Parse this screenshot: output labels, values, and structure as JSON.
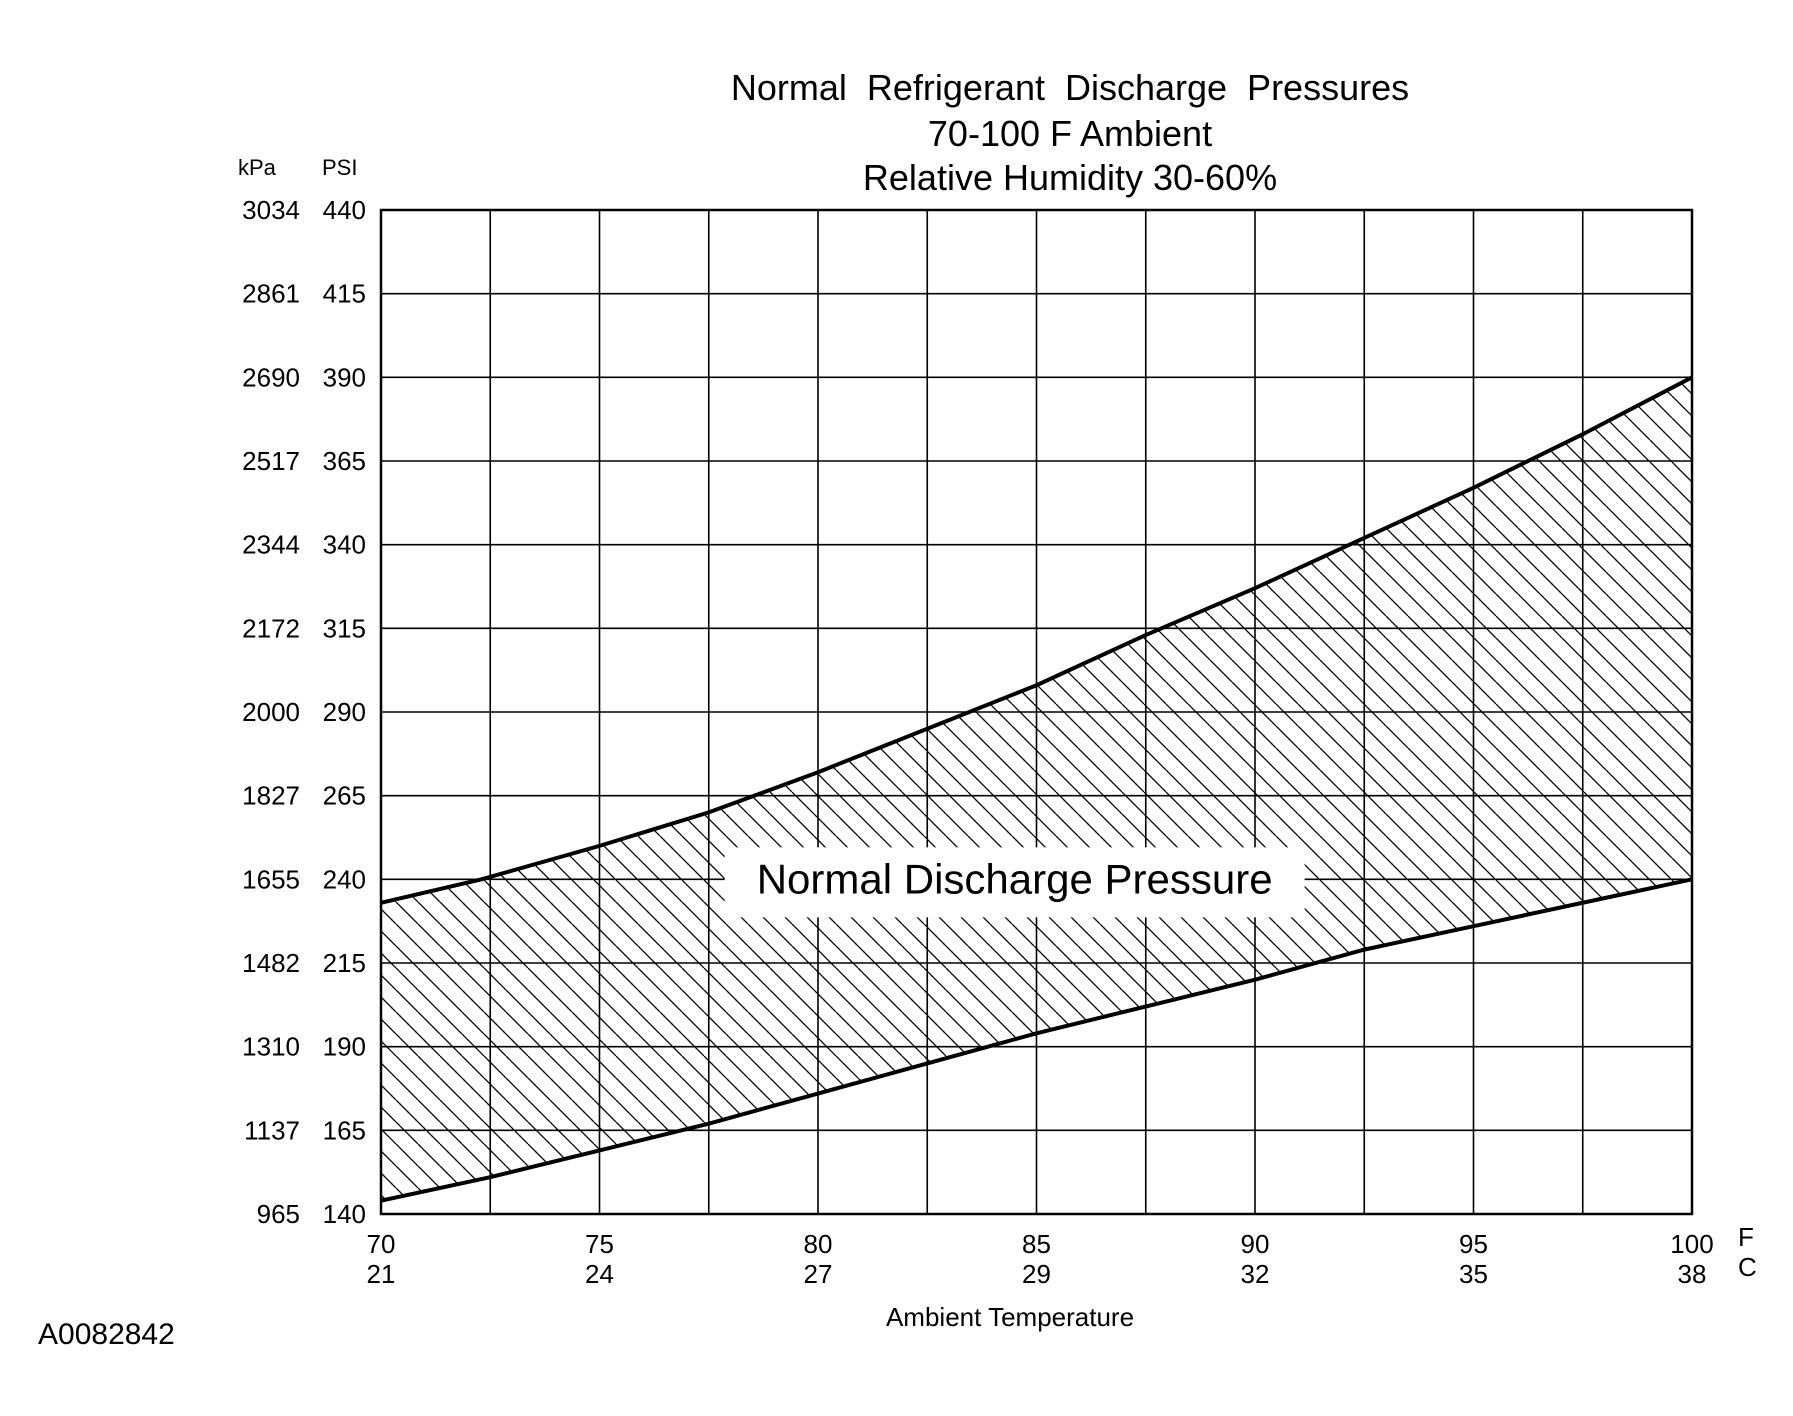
{
  "chart_data": {
    "type": "area",
    "title_lines": [
      "Normal  Refrigerant  Discharge  Pressures",
      "70-100 F Ambient",
      "Relative Humidity 30-60%"
    ],
    "xlabel": "Ambient Temperature",
    "x_unit_primary": "F",
    "x_unit_secondary": "C",
    "xlim": [
      70,
      100
    ],
    "ylim": [
      140,
      440
    ],
    "y_unit_primary": "PSI",
    "y_unit_secondary": "kPa",
    "x_ticks_f": [
      "70",
      "75",
      "80",
      "85",
      "90",
      "95",
      "100"
    ],
    "x_ticks_c": [
      "21",
      "24",
      "27",
      "29",
      "32",
      "35",
      "38"
    ],
    "y_ticks_psi": [
      "140",
      "165",
      "190",
      "215",
      "240",
      "265",
      "290",
      "315",
      "340",
      "365",
      "390",
      "415",
      "440"
    ],
    "y_ticks_kpa": [
      "965",
      "1137",
      "1310",
      "1482",
      "1655",
      "1827",
      "2000",
      "2172",
      "2344",
      "2517",
      "2690",
      "2861",
      "3034"
    ],
    "grid": true,
    "band_label": "Normal Discharge Pressure",
    "series": [
      {
        "role": "upper",
        "x": [
          70,
          72.3,
          75,
          77.5,
          80,
          82.5,
          85,
          87.5,
          90,
          92.5,
          95,
          97.5,
          100
        ],
        "y": [
          233,
          240,
          250,
          260,
          272,
          285,
          298,
          313,
          327,
          342,
          357,
          373,
          390
        ]
      },
      {
        "role": "lower",
        "x": [
          70,
          72.5,
          75,
          77.5,
          80,
          82.5,
          85,
          87.5,
          90,
          92.5,
          95,
          97.5,
          100
        ],
        "y": [
          144,
          151,
          159,
          167,
          176,
          185,
          194,
          202,
          210,
          219,
          226,
          233,
          240
        ]
      }
    ],
    "colors": {
      "ink": "#000000",
      "background": "#ffffff"
    }
  },
  "figure_id": "A0082842"
}
